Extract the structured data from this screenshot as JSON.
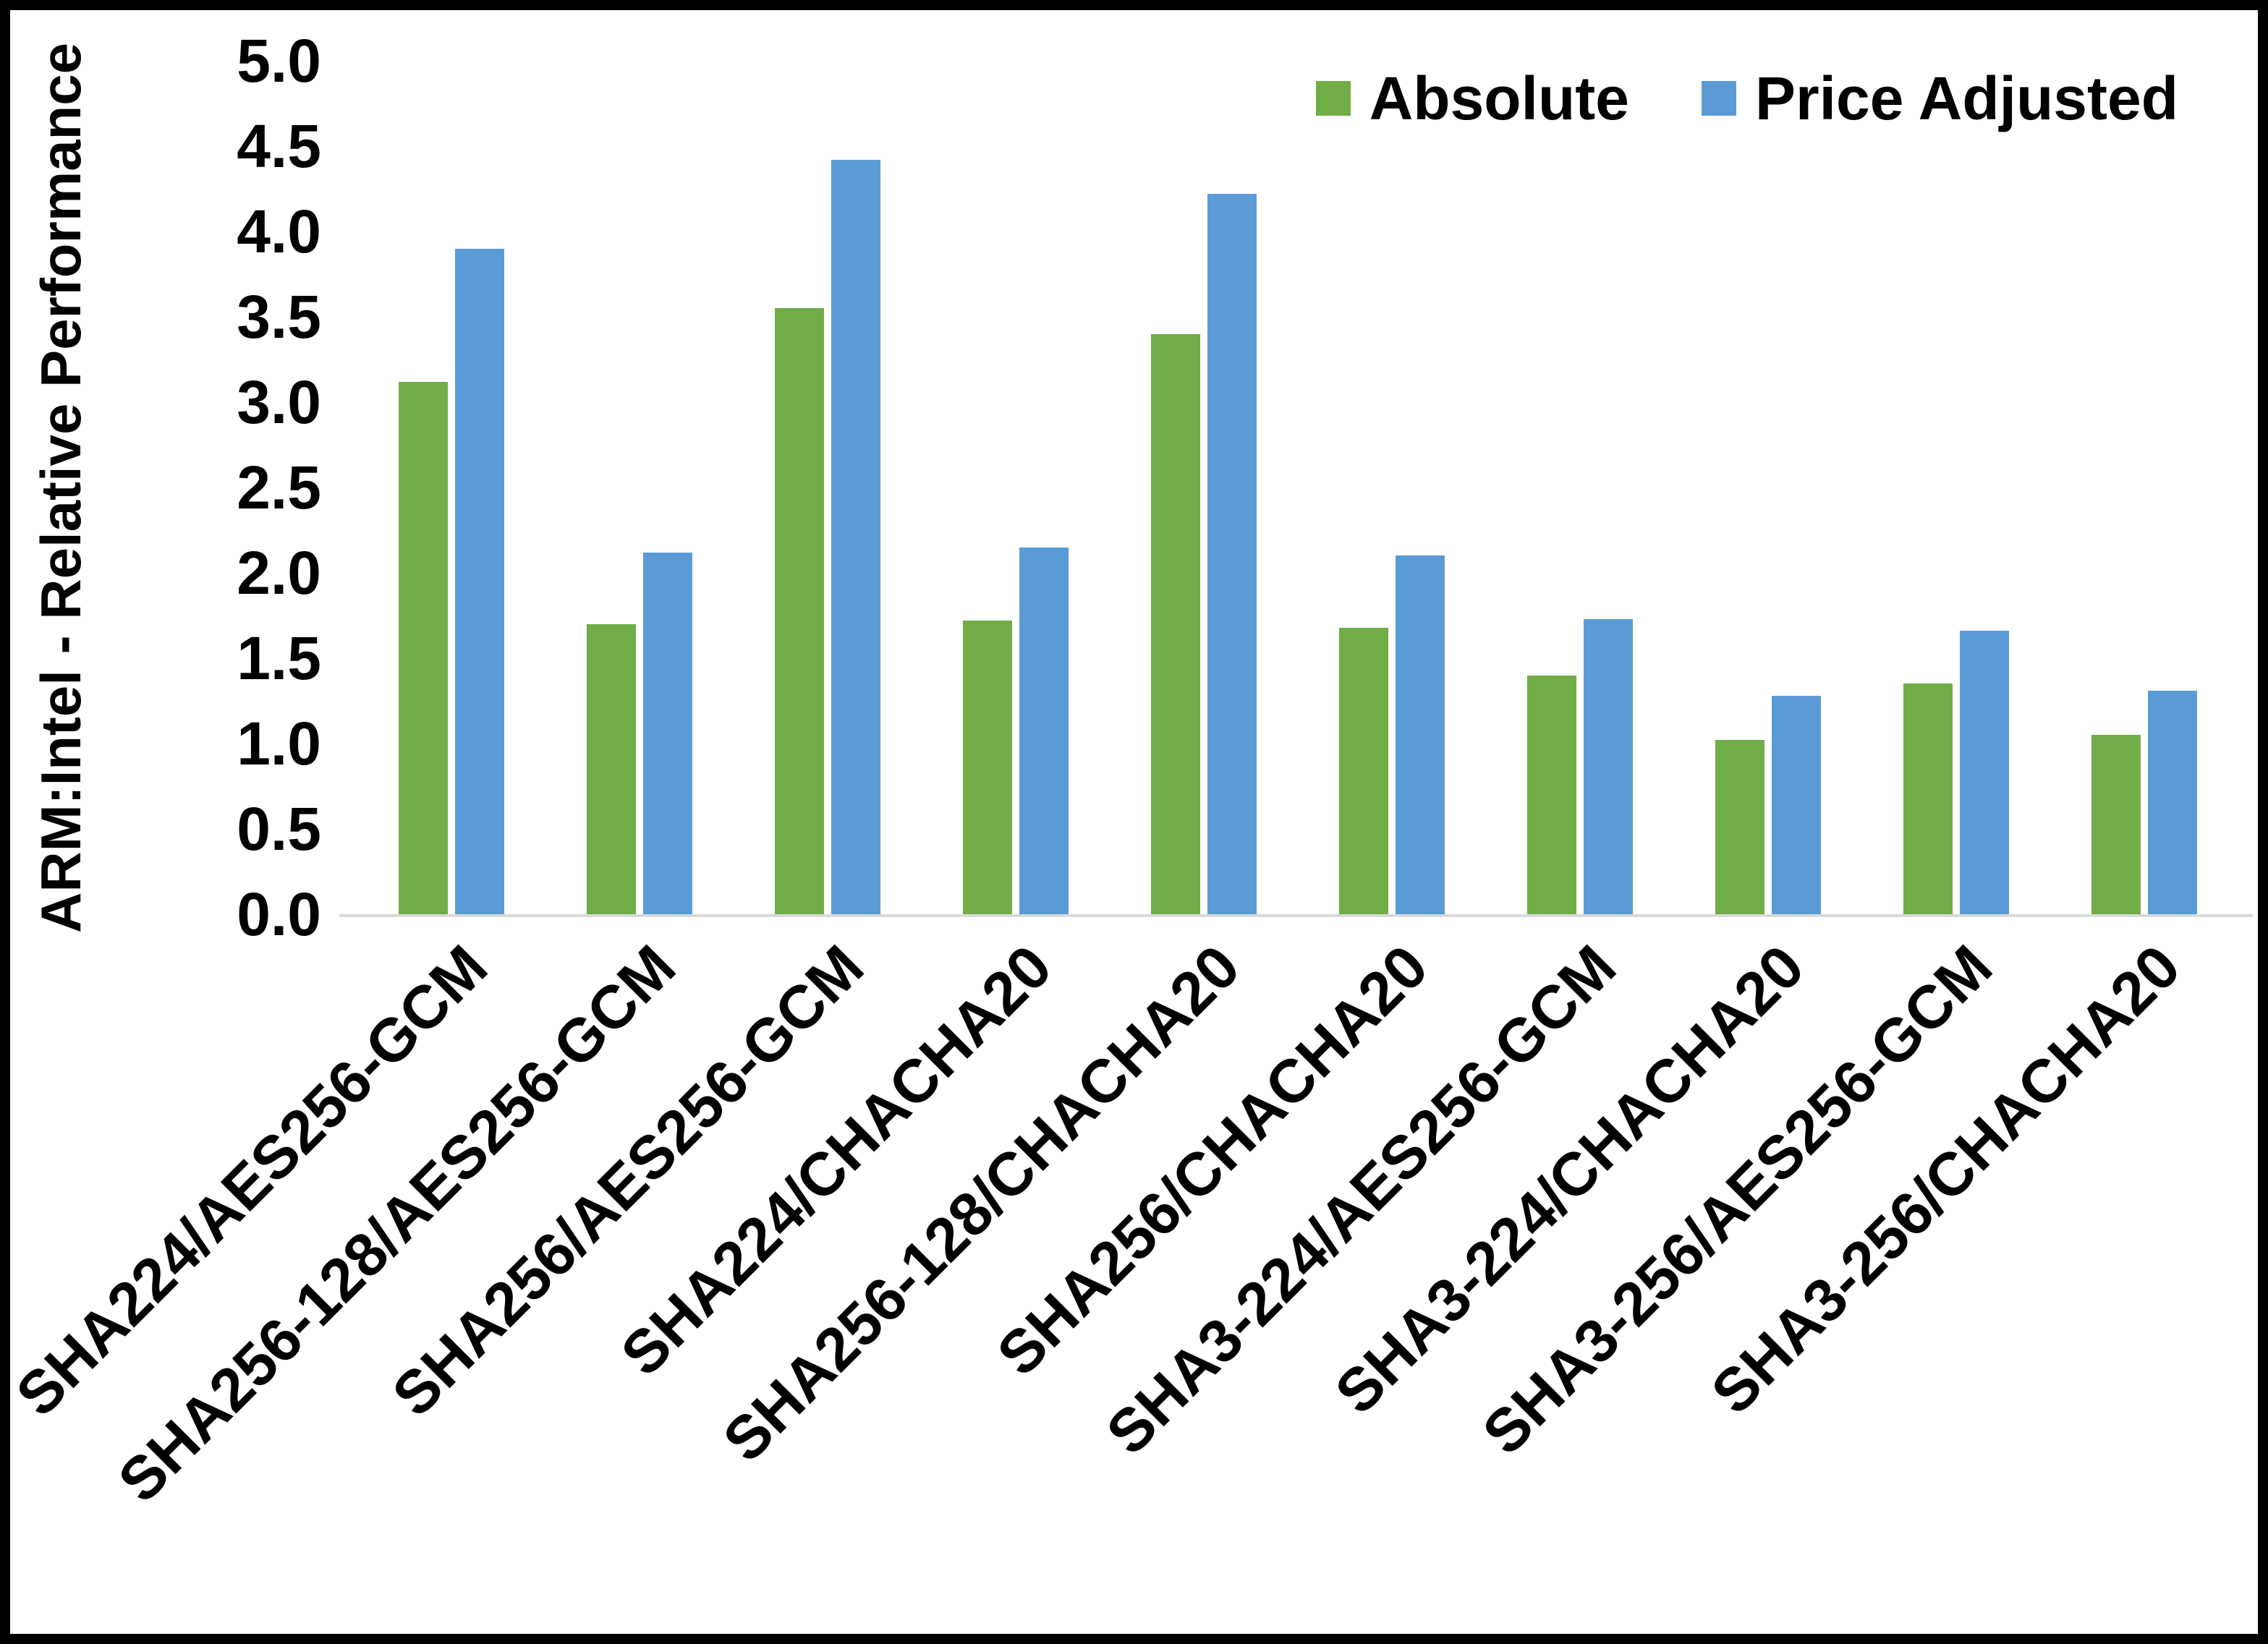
{
  "figure": {
    "background_color": "#ffffff",
    "border_color": "#000000"
  },
  "legend": {
    "items": [
      {
        "label": "Absolute",
        "color": "#70AD47"
      },
      {
        "label": "Price Adjusted",
        "color": "#5B9BD5"
      }
    ]
  },
  "chart_data": {
    "type": "bar",
    "title": "",
    "xlabel": "",
    "ylabel": "ARM:Intel - Relative Performance",
    "ylim": [
      0,
      5
    ],
    "ytick_step": 0.5,
    "yticks": [
      "0.0",
      "0.5",
      "1.0",
      "1.5",
      "2.0",
      "2.5",
      "3.0",
      "3.5",
      "4.0",
      "4.5",
      "5.0"
    ],
    "grid": false,
    "legend_position": "top-right",
    "categories": [
      "SHA224/AES256-GCM",
      "SHA256-128/AES256-GCM",
      "SHA256/AES256-GCM",
      "SHA224/CHACHA20",
      "SHA256-128/CHACHA20",
      "SHA256/CHACHA20",
      "SHA3-224/AES256-GCM",
      "SHA3-224/CHACHA20",
      "SHA3-256/AES256-GCM",
      "SHA3-256/CHACHA20"
    ],
    "series": [
      {
        "name": "Absolute",
        "color": "#70AD47",
        "values": [
          3.12,
          1.7,
          3.55,
          1.72,
          3.4,
          1.68,
          1.4,
          1.02,
          1.35,
          1.05
        ]
      },
      {
        "name": "Price Adjusted",
        "color": "#5B9BD5",
        "values": [
          3.9,
          2.12,
          4.42,
          2.15,
          4.22,
          2.1,
          1.73,
          1.28,
          1.66,
          1.31
        ]
      }
    ]
  }
}
